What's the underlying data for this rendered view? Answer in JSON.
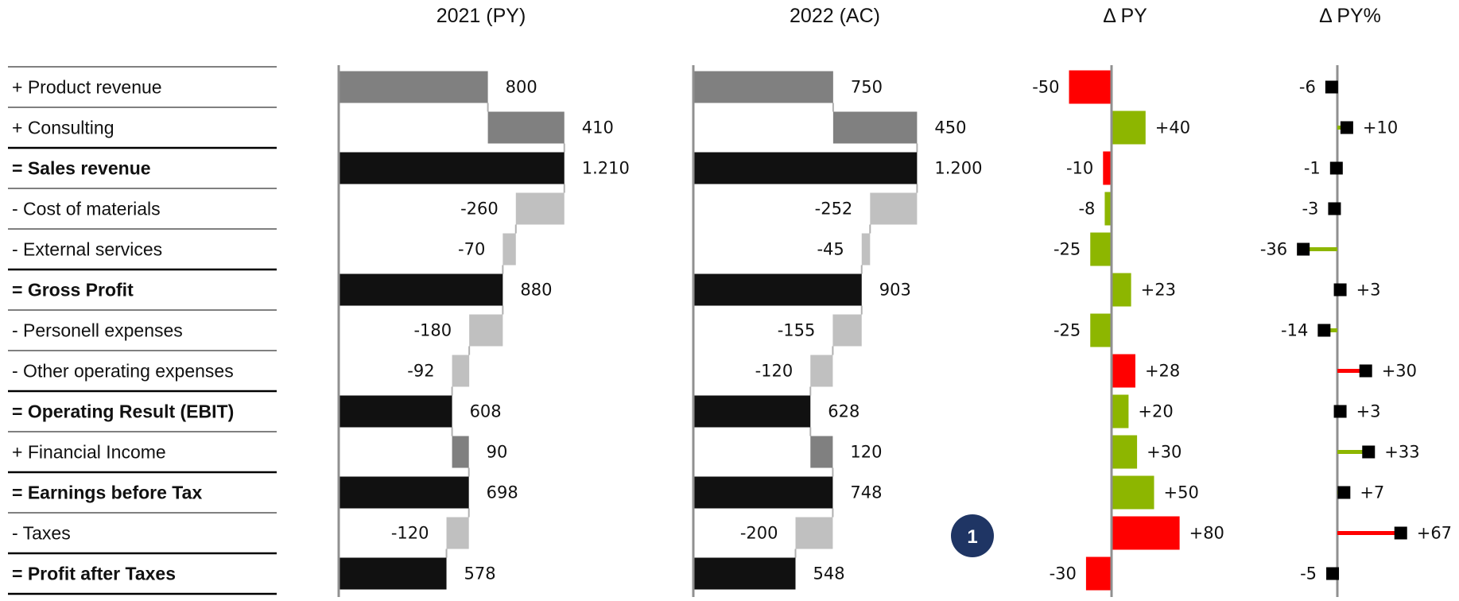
{
  "headers": {
    "py": "2021 (PY)",
    "ac": "2022 (AC)",
    "delta_abs": "Δ PY",
    "delta_pct": "Δ PY%"
  },
  "badge": "1",
  "colors": {
    "total": "#111111",
    "increase": "#808080",
    "decrease": "#c0c0c0",
    "positive": "#8db600",
    "negative": "#ff0000",
    "axis": "#909090",
    "marker": "#000000",
    "badge": "#1f3564"
  },
  "chart_data": {
    "type": "bar",
    "categories": [
      "+ Product revenue",
      "+ Consulting",
      "= Sales revenue",
      "- Cost of materials",
      "- External services",
      "= Gross Profit",
      "- Personell expenses",
      "- Other operating expenses",
      "= Operating Result (EBIT)",
      "+ Financial Income",
      "= Earnings before Tax",
      "- Taxes",
      "= Profit after Taxes"
    ],
    "row_kinds": [
      "add",
      "add",
      "total",
      "sub",
      "sub",
      "total",
      "sub",
      "sub",
      "total",
      "add",
      "total",
      "sub",
      "total"
    ],
    "py": {
      "values": [
        800,
        410,
        1210,
        -260,
        -70,
        880,
        -180,
        -92,
        608,
        90,
        698,
        -120,
        578
      ],
      "labels": [
        "800",
        "410",
        "1.210",
        "-260",
        "-70",
        "880",
        "-180",
        "-92",
        "608",
        "90",
        "698",
        "-120",
        "578"
      ]
    },
    "ac": {
      "values": [
        750,
        450,
        1200,
        -252,
        -45,
        903,
        -155,
        -120,
        628,
        120,
        748,
        -200,
        548
      ],
      "labels": [
        "750",
        "450",
        "1.200",
        "-252",
        "-45",
        "903",
        "-155",
        "-120",
        "628",
        "120",
        "748",
        "-200",
        "548"
      ]
    },
    "delta_py": {
      "values": [
        -50,
        40,
        -10,
        -8,
        -25,
        23,
        -25,
        28,
        20,
        30,
        50,
        80,
        -30
      ],
      "labels": [
        "-50",
        "+40",
        "-10",
        "-8",
        "-25",
        "+23",
        "-25",
        "+28",
        "+20",
        "+30",
        "+50",
        "+80",
        "-30"
      ],
      "good": [
        false,
        true,
        false,
        true,
        true,
        true,
        true,
        false,
        true,
        true,
        true,
        false,
        false
      ]
    },
    "delta_py_pct": {
      "values": [
        -6,
        10,
        -1,
        -3,
        -36,
        3,
        -14,
        30,
        3,
        33,
        7,
        67,
        -5
      ],
      "labels": [
        "-6",
        "+10",
        "-1",
        "-3",
        "-36",
        "+3",
        "-14",
        "+30",
        "+3",
        "+33",
        "+7",
        "+67",
        "-5"
      ],
      "good": [
        false,
        true,
        false,
        true,
        true,
        true,
        true,
        false,
        true,
        true,
        true,
        false,
        false
      ]
    }
  }
}
